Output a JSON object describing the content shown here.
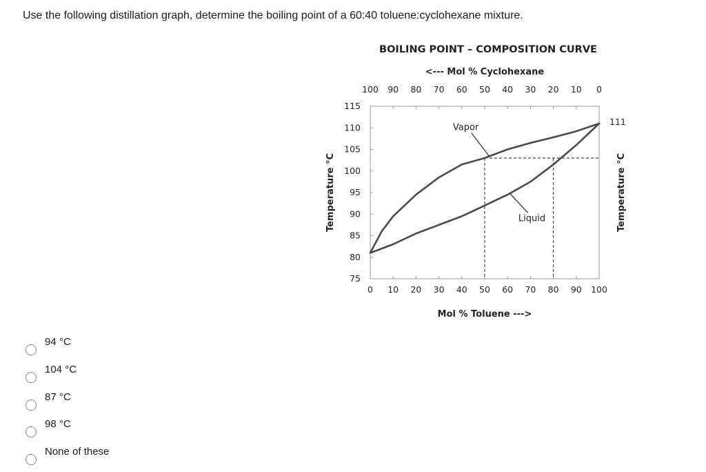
{
  "question": {
    "text": "Use the following distillation graph, determine the boiling point of a 60:40 toluene:cyclohexane mixture."
  },
  "chart_data": {
    "type": "line",
    "title": "BOILING POINT – COMPOSITION CURVE",
    "top_axis_label": "<--- Mol % Cyclohexane",
    "top_ticks": [
      "100",
      "90",
      "80",
      "70",
      "60",
      "50",
      "40",
      "30",
      "20",
      "10",
      "0"
    ],
    "xlabel": "Mol % Toluene --->",
    "x_ticks": [
      "0",
      "10",
      "20",
      "30",
      "40",
      "50",
      "60",
      "70",
      "80",
      "90",
      "100"
    ],
    "ylabel_left": "Temperature °C",
    "ylabel_right": "Temperature °C",
    "y_ticks": [
      "115",
      "110",
      "105",
      "100",
      "95",
      "90",
      "85",
      "80",
      "75"
    ],
    "right_label": "111",
    "xlim": [
      0,
      100
    ],
    "ylim": [
      75,
      115
    ],
    "grid": false,
    "series": [
      {
        "name": "Vapor",
        "x": [
          0,
          5,
          10,
          20,
          30,
          40,
          50,
          60,
          70,
          80,
          90,
          100
        ],
        "y": [
          81,
          86,
          89.5,
          94.5,
          98.5,
          101.5,
          103,
          105,
          106.5,
          107.8,
          109.2,
          111
        ]
      },
      {
        "name": "Liquid",
        "x": [
          0,
          10,
          20,
          30,
          40,
          50,
          60,
          70,
          80,
          90,
          100
        ],
        "y": [
          81,
          83,
          85.5,
          87.5,
          89.5,
          92,
          94.5,
          97.5,
          101.5,
          106,
          111
        ]
      }
    ],
    "guides": [
      {
        "x": 50,
        "y": 103
      },
      {
        "x": 80,
        "y": 103
      }
    ],
    "annotations": [
      {
        "text": "Vapor",
        "target_series": 0,
        "target_x": 52
      },
      {
        "text": "Liquid",
        "target_series": 1,
        "target_x": 61
      }
    ]
  },
  "options": [
    {
      "label": "94 °C"
    },
    {
      "label": "104 °C"
    },
    {
      "label": "87 °C"
    },
    {
      "label": "98 °C"
    },
    {
      "label": "None of these"
    }
  ]
}
